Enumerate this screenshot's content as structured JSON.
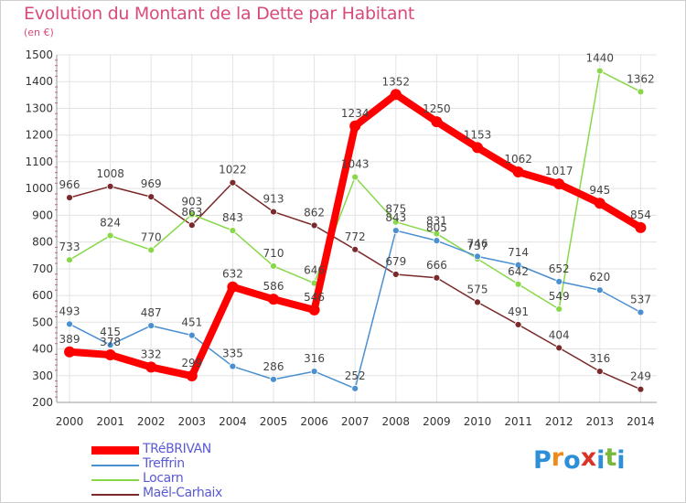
{
  "title": "Evolution du Montant de la Dette par Habitant",
  "unit": "(en €)",
  "logo": {
    "letters": [
      "P",
      "r",
      "o",
      "x",
      "i",
      "t",
      "i"
    ],
    "colors": [
      "#2d8fd8",
      "#f08a1c",
      "#2d8fd8",
      "#d8342a",
      "#2d8fd8",
      "#79b83a",
      "#2d8fd8"
    ]
  },
  "chart_data": {
    "type": "line",
    "title": "Evolution du Montant de la Dette par Habitant",
    "ylabel": "(en €)",
    "xlabel": "",
    "x": [
      "2000",
      "2001",
      "2002",
      "2003",
      "2004",
      "2005",
      "2006",
      "2007",
      "2008",
      "2009",
      "2010",
      "2011",
      "2012",
      "2013",
      "2014"
    ],
    "ylim": [
      200,
      1500
    ],
    "yticks": [
      200,
      300,
      400,
      500,
      600,
      700,
      800,
      900,
      1000,
      1100,
      1200,
      1300,
      1400,
      1500
    ],
    "grid": true,
    "legend_position": "bottom-left",
    "series": [
      {
        "name": "TRéBRIVAN",
        "color": "#ff0000",
        "values": [
          389,
          378,
          332,
          299,
          632,
          586,
          546,
          1234,
          1352,
          1250,
          1153,
          1062,
          1017,
          945,
          854
        ],
        "labels": [
          "389",
          "378",
          "332",
          "299",
          "632",
          "586",
          "546",
          "1234",
          "1352",
          "1250",
          "1153",
          "1062",
          "1017",
          "945",
          "854"
        ]
      },
      {
        "name": "Treffrin",
        "color": "#4a8fd0",
        "values": [
          493,
          415,
          487,
          451,
          335,
          286,
          316,
          252,
          843,
          805,
          746,
          714,
          652,
          620,
          537
        ],
        "labels": [
          "493",
          "415",
          "487",
          "451",
          "335",
          "286",
          "316",
          "252",
          "843",
          "805",
          "746",
          "714",
          "652",
          "620",
          "537"
        ]
      },
      {
        "name": "Locarn",
        "color": "#88d84a",
        "values": [
          733,
          824,
          770,
          903,
          843,
          710,
          646,
          1043,
          875,
          831,
          737,
          642,
          549,
          1440,
          1362
        ],
        "labels": [
          "733",
          "824",
          "770",
          "903",
          "843",
          "710",
          "646",
          "1043",
          "875",
          "831",
          "737",
          "642",
          "549",
          "1440",
          "1362"
        ]
      },
      {
        "name": "Maël-Carhaix",
        "color": "#7a2a2a",
        "values": [
          966,
          1008,
          969,
          863,
          1022,
          913,
          862,
          772,
          679,
          666,
          575,
          491,
          404,
          316,
          249
        ],
        "labels": [
          "966",
          "1008",
          "969",
          "863",
          "1022",
          "913",
          "862",
          "772",
          "679",
          "666",
          "575",
          "491",
          "404",
          "316",
          "249"
        ]
      }
    ]
  }
}
